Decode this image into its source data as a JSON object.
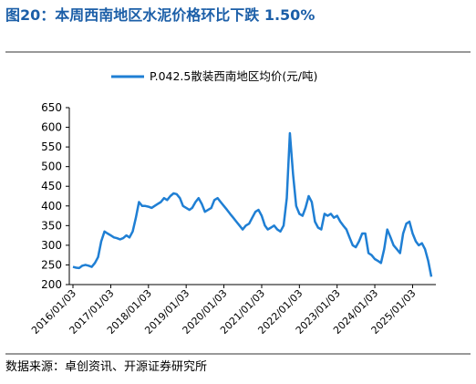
{
  "title": "图20：本周西南地区水泥价格环比下跌 1.50%",
  "source": "数据来源：卓创资讯、开源证券研究所",
  "chart_data": {
    "type": "line",
    "x": [
      "2016/01/03",
      "2016/02/03",
      "2016/03/03",
      "2016/04/03",
      "2016/05/03",
      "2016/06/03",
      "2016/07/03",
      "2016/08/03",
      "2016/09/03",
      "2016/10/03",
      "2016/11/03",
      "2016/12/03",
      "2017/01/03",
      "2017/02/03",
      "2017/03/03",
      "2017/04/03",
      "2017/05/03",
      "2017/06/03",
      "2017/07/03",
      "2017/08/03",
      "2017/09/03",
      "2017/10/03",
      "2017/11/03",
      "2017/12/03",
      "2018/01/03",
      "2018/02/03",
      "2018/03/03",
      "2018/04/03",
      "2018/05/03",
      "2018/06/03",
      "2018/07/03",
      "2018/08/03",
      "2018/09/03",
      "2018/10/03",
      "2018/11/03",
      "2018/12/03",
      "2019/01/03",
      "2019/02/03",
      "2019/03/03",
      "2019/04/03",
      "2019/05/03",
      "2019/06/03",
      "2019/07/03",
      "2019/08/03",
      "2019/09/03",
      "2019/10/03",
      "2019/11/03",
      "2019/12/03",
      "2020/01/03",
      "2020/02/03",
      "2020/03/03",
      "2020/04/03",
      "2020/05/03",
      "2020/06/03",
      "2020/07/03",
      "2020/08/03",
      "2020/09/03",
      "2020/10/03",
      "2020/11/03",
      "2020/12/03",
      "2021/01/03",
      "2021/02/03",
      "2021/03/03",
      "2021/04/03",
      "2021/05/03",
      "2021/06/03",
      "2021/07/03",
      "2021/08/03",
      "2021/09/03",
      "2021/10/03",
      "2021/11/03",
      "2021/12/03",
      "2022/01/03",
      "2022/02/03",
      "2022/03/03",
      "2022/04/03",
      "2022/05/03",
      "2022/06/03",
      "2022/07/03",
      "2022/08/03",
      "2022/09/03",
      "2022/10/03",
      "2022/11/03",
      "2022/12/03",
      "2023/01/03",
      "2023/02/03",
      "2023/03/03",
      "2023/04/03",
      "2023/05/03",
      "2023/06/03",
      "2023/07/03",
      "2023/08/03",
      "2023/09/03",
      "2023/10/03",
      "2023/11/03",
      "2023/12/03",
      "2024/01/03",
      "2024/02/03",
      "2024/03/03",
      "2024/04/03",
      "2024/05/03",
      "2024/06/03",
      "2024/07/03",
      "2024/08/03",
      "2024/09/03",
      "2024/10/03",
      "2024/11/03",
      "2024/12/03",
      "2025/01/03",
      "2025/02/03",
      "2025/03/03",
      "2025/04/03",
      "2025/05/03",
      "2025/06/03",
      "2025/07/03"
    ],
    "series": [
      {
        "name": "P.042.5散装西南地区均价(元/吨)",
        "color": "#1f7fd4",
        "values": [
          245,
          243,
          242,
          248,
          250,
          248,
          245,
          255,
          270,
          310,
          335,
          330,
          325,
          320,
          318,
          315,
          318,
          325,
          320,
          335,
          370,
          410,
          400,
          400,
          398,
          395,
          400,
          405,
          410,
          420,
          415,
          425,
          432,
          430,
          420,
          400,
          395,
          390,
          395,
          410,
          420,
          405,
          385,
          390,
          395,
          415,
          420,
          410,
          400,
          390,
          380,
          370,
          360,
          350,
          340,
          350,
          355,
          370,
          385,
          390,
          375,
          350,
          340,
          345,
          350,
          340,
          335,
          350,
          420,
          585,
          480,
          400,
          380,
          375,
          395,
          425,
          410,
          360,
          345,
          340,
          380,
          375,
          380,
          370,
          375,
          360,
          350,
          340,
          320,
          300,
          295,
          310,
          330,
          330,
          280,
          275,
          265,
          260,
          255,
          290,
          340,
          320,
          300,
          290,
          280,
          330,
          355,
          360,
          330,
          310,
          300,
          305,
          290,
          260,
          220
        ]
      }
    ],
    "xlim": [
      "2016/01/03",
      "2025/07/03"
    ],
    "xticks": [
      "2016/01/03",
      "2017/01/03",
      "2018/01/03",
      "2019/01/03",
      "2020/01/03",
      "2021/01/03",
      "2022/01/03",
      "2023/01/03",
      "2024/01/03",
      "2025/01/03"
    ],
    "ylim": [
      200,
      650
    ],
    "yticks": [
      200,
      250,
      300,
      350,
      400,
      450,
      500,
      550,
      600,
      650
    ]
  }
}
